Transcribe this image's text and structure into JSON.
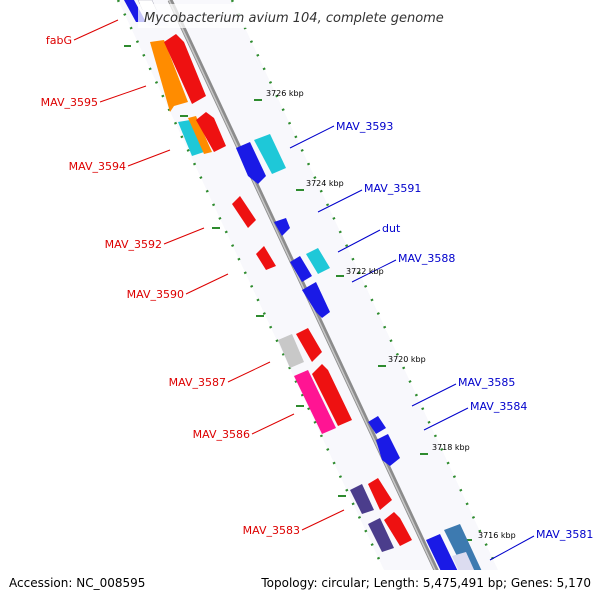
{
  "title": "Mycobacterium avium 104, complete genome",
  "footer": {
    "accession": "Accession: NC_008595",
    "summary": "Topology: circular; Length: 5,475,491 bp; Genes: 5,170"
  },
  "colors": {
    "backbone": "#8c8c8c",
    "tick": "#2e8b2e",
    "label_left": "#dd0000",
    "label_right": "#0000cc"
  },
  "kbp_labels": [
    "3726 kbp",
    "3724 kbp",
    "3722 kbp",
    "3720 kbp",
    "3718 kbp",
    "3716 kbp"
  ],
  "left_labels": [
    "fabG",
    "MAV_3595",
    "MAV_3594",
    "MAV_3592",
    "MAV_3590",
    "MAV_3587",
    "MAV_3586",
    "MAV_3583"
  ],
  "right_labels": [
    "MAV_3593",
    "MAV_3591",
    "dut",
    "MAV_3588",
    "MAV_3585",
    "MAV_3584",
    "MAV_3581"
  ]
}
